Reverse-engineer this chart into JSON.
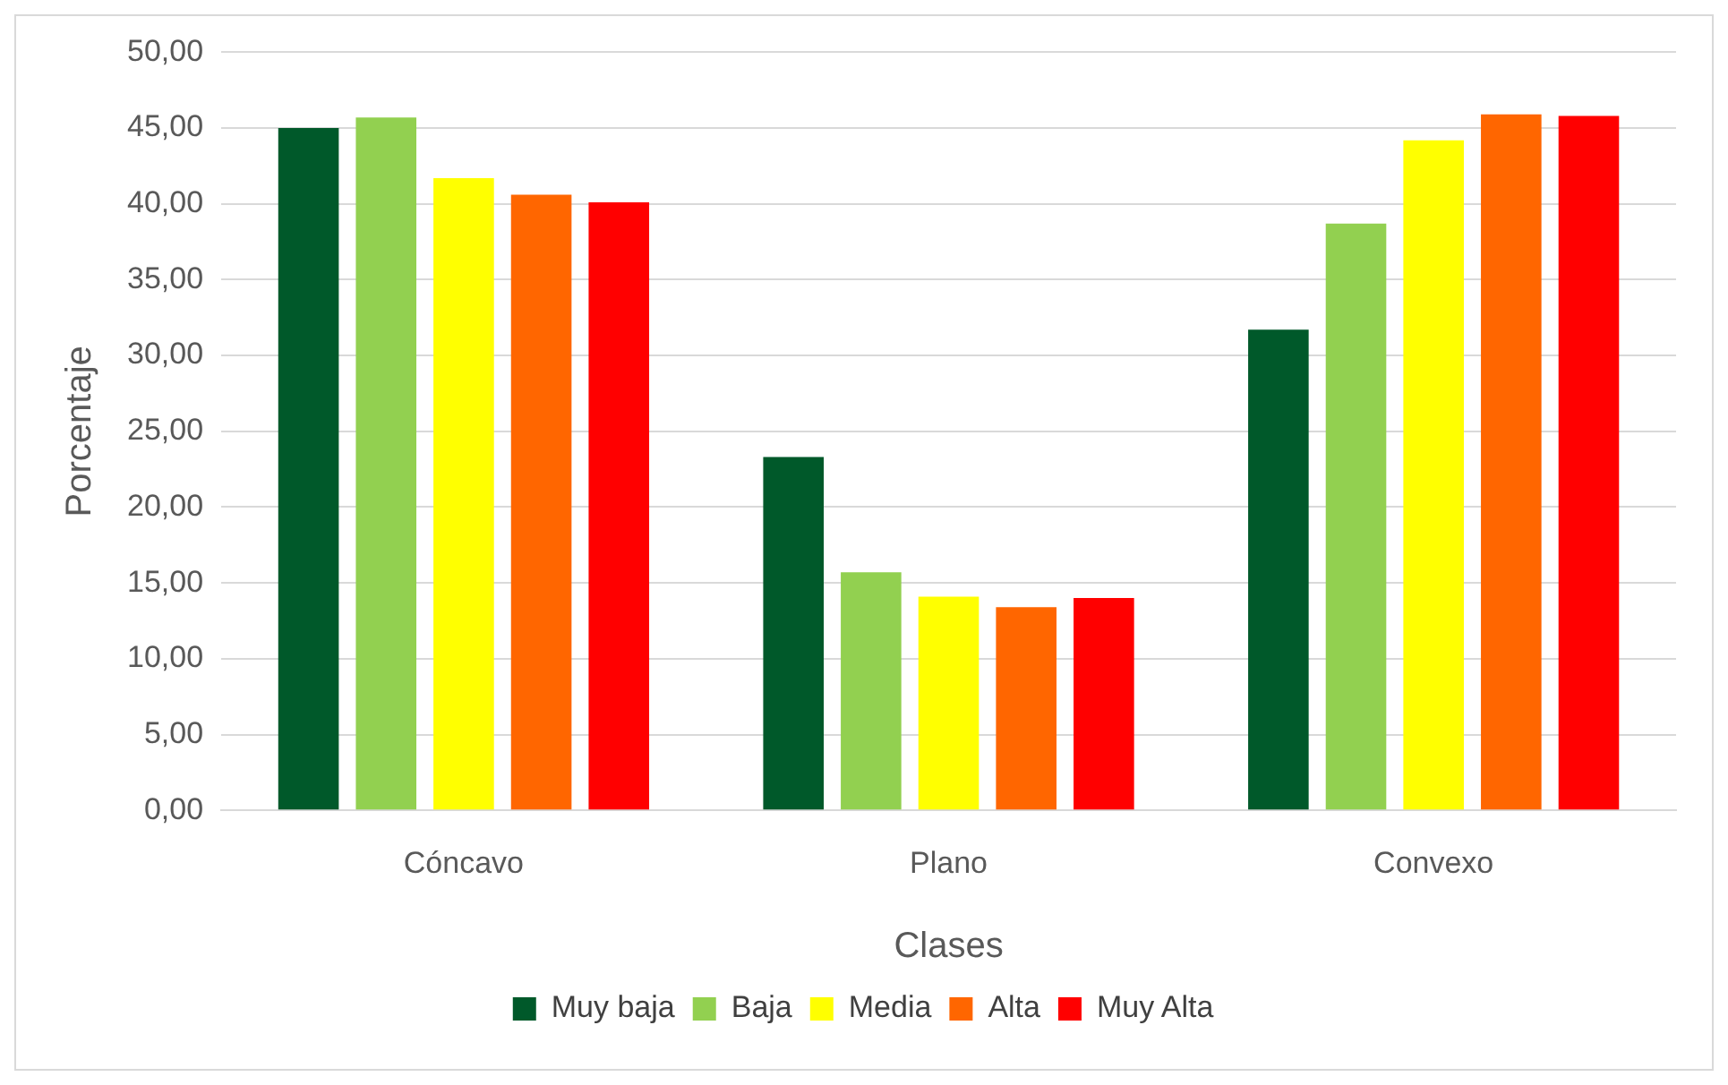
{
  "chart_data": {
    "type": "bar",
    "xlabel": "Clases",
    "ylabel": "Porcentaje",
    "categories": [
      "Cóncavo",
      "Plano",
      "Convexo"
    ],
    "series": [
      {
        "name": "Muy baja",
        "color": "#00592a",
        "values": [
          45.0,
          23.3,
          31.7
        ]
      },
      {
        "name": "Baja",
        "color": "#92d050",
        "values": [
          45.7,
          15.7,
          38.7
        ]
      },
      {
        "name": "Media",
        "color": "#ffff00",
        "values": [
          41.7,
          14.1,
          44.2
        ]
      },
      {
        "name": "Alta",
        "color": "#ff6600",
        "values": [
          40.6,
          13.4,
          45.9
        ]
      },
      {
        "name": "Muy Alta",
        "color": "#ff0000",
        "values": [
          40.1,
          14.0,
          45.8
        ]
      }
    ],
    "ylim": [
      0,
      50
    ],
    "yticks": [
      {
        "value": 0,
        "label": "0,00"
      },
      {
        "value": 5,
        "label": "5,00"
      },
      {
        "value": 10,
        "label": "10,00"
      },
      {
        "value": 15,
        "label": "15,00"
      },
      {
        "value": 20,
        "label": "20,00"
      },
      {
        "value": 25,
        "label": "25,00"
      },
      {
        "value": 30,
        "label": "30,00"
      },
      {
        "value": 35,
        "label": "35,00"
      },
      {
        "value": 40,
        "label": "40,00"
      },
      {
        "value": 45,
        "label": "45,00"
      },
      {
        "value": 50,
        "label": "50,00"
      }
    ],
    "grid": "y",
    "legend": "bottom"
  }
}
